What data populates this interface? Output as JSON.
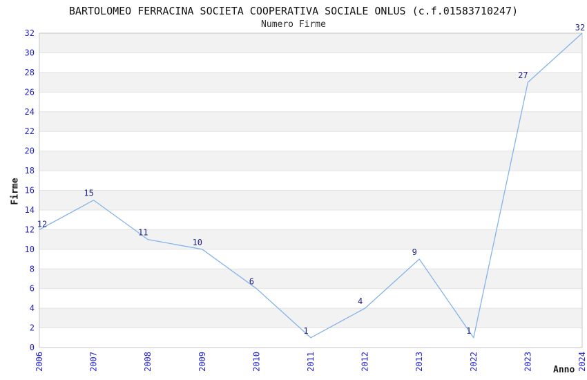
{
  "chart_data": {
    "type": "line",
    "title": "BARTOLOMEO FERRACINA SOCIETA COOPERATIVA SOCIALE ONLUS (c.f.01583710247)",
    "subtitle": "Numero Firme",
    "xlabel": "Anno",
    "ylabel": "Firme",
    "categories": [
      "2006",
      "2007",
      "2008",
      "2009",
      "2010",
      "2011",
      "2012",
      "2013",
      "2022",
      "2023",
      "2024"
    ],
    "values": [
      12,
      15,
      11,
      10,
      6,
      1,
      4,
      9,
      1,
      27,
      32
    ],
    "ylim": [
      0,
      32
    ],
    "ytick_step": 2,
    "grid": "horizontal-only",
    "legend": "none",
    "data_labels_shown": true,
    "colors": {
      "line": "#85b3e8",
      "tick_label": "#2222cc",
      "data_label": "#1f1f87",
      "band_gray": "#f2f2f2",
      "band_white": "#ffffff",
      "gridline": "#e2e2e2",
      "plot_border": "#c6c6c6",
      "title_text": "#111111",
      "axis_name_text": "#1a1a1a"
    }
  }
}
